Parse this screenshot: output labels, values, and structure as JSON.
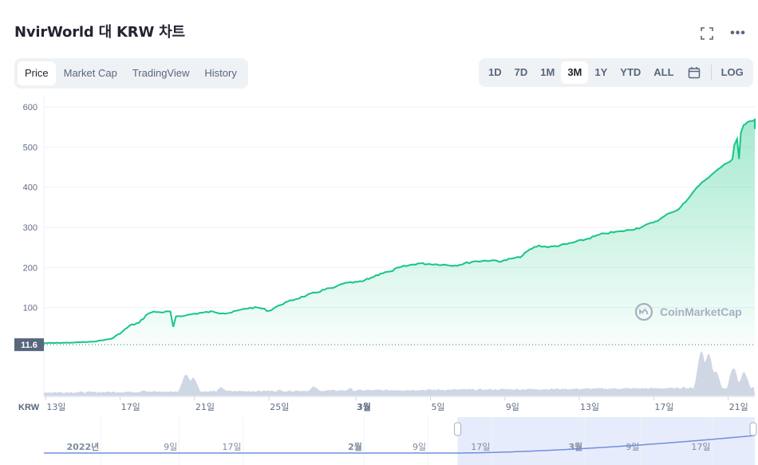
{
  "header": {
    "title": "NvirWorld 대 KRW 차트",
    "expand_icon": "expand-icon",
    "more_icon": "more-icon",
    "more_glyph": "•••"
  },
  "tabs": [
    {
      "label": "Price",
      "active": true
    },
    {
      "label": "Market Cap",
      "active": false
    },
    {
      "label": "TradingView",
      "active": false
    },
    {
      "label": "History",
      "active": false
    }
  ],
  "ranges": [
    {
      "label": "1D",
      "active": false
    },
    {
      "label": "7D",
      "active": false
    },
    {
      "label": "1M",
      "active": false
    },
    {
      "label": "3M",
      "active": true
    },
    {
      "label": "1Y",
      "active": false
    },
    {
      "label": "YTD",
      "active": false
    },
    {
      "label": "ALL",
      "active": false
    }
  ],
  "calendar_icon": "calendar-icon",
  "log_label": "LOG",
  "watermark": "CoinMarketCap",
  "colors": {
    "line": "#16c784",
    "volume": "#cfd6e4",
    "text": "#222531",
    "muted": "#58667e",
    "tab_bg": "#eff2f5",
    "navigator_fill": "#e6ecfb",
    "navigator_line": "#6f8fe0"
  },
  "chart_data": {
    "type": "area",
    "currency_label": "KRW",
    "current_value_label": "11.6",
    "y_ticks": [
      600,
      500,
      400,
      300,
      200,
      100
    ],
    "ylim": [
      0,
      600
    ],
    "x_ticks": [
      {
        "label": "13일",
        "day": 0,
        "bold": false
      },
      {
        "label": "17일",
        "day": 4,
        "bold": false
      },
      {
        "label": "21일",
        "day": 8,
        "bold": false
      },
      {
        "label": "25일",
        "day": 12,
        "bold": false
      },
      {
        "label": "3월",
        "day": 16.67,
        "bold": true
      },
      {
        "label": "5일",
        "day": 20.67,
        "bold": false
      },
      {
        "label": "9일",
        "day": 24.67,
        "bold": false
      },
      {
        "label": "13일",
        "day": 28.67,
        "bold": false
      },
      {
        "label": "17일",
        "day": 32.67,
        "bold": false
      },
      {
        "label": "21일",
        "day": 36.67,
        "bold": false
      }
    ],
    "x_range_days": [
      -0.1,
      38.1
    ],
    "series": [
      {
        "values": [
          [
            -0.1,
            11.6
          ],
          [
            0.5,
            12
          ],
          [
            1.5,
            13
          ],
          [
            2.5,
            15
          ],
          [
            3.5,
            22
          ],
          [
            4.0,
            35
          ],
          [
            4.5,
            55
          ],
          [
            5.0,
            62
          ],
          [
            5.5,
            85
          ],
          [
            5.8,
            90
          ],
          [
            6.2,
            88
          ],
          [
            6.7,
            90
          ],
          [
            6.85,
            52
          ],
          [
            7.0,
            78
          ],
          [
            7.5,
            80
          ],
          [
            8.0,
            85
          ],
          [
            8.5,
            88
          ],
          [
            9.0,
            90
          ],
          [
            9.5,
            86
          ],
          [
            10.0,
            88
          ],
          [
            10.5,
            95
          ],
          [
            11.0,
            100
          ],
          [
            11.5,
            99
          ],
          [
            12.0,
            92
          ],
          [
            12.5,
            105
          ],
          [
            13.0,
            115
          ],
          [
            14.0,
            130
          ],
          [
            15.0,
            145
          ],
          [
            15.5,
            150
          ],
          [
            16.0,
            160
          ],
          [
            16.5,
            162
          ],
          [
            17.0,
            165
          ],
          [
            17.5,
            175
          ],
          [
            18.0,
            185
          ],
          [
            18.5,
            190
          ],
          [
            19.0,
            200
          ],
          [
            20.0,
            210
          ],
          [
            21.0,
            208
          ],
          [
            22.0,
            205
          ],
          [
            23.0,
            215
          ],
          [
            24.0,
            218
          ],
          [
            24.5,
            215
          ],
          [
            25.0,
            222
          ],
          [
            25.5,
            225
          ],
          [
            26.0,
            245
          ],
          [
            26.5,
            255
          ],
          [
            27.0,
            250
          ],
          [
            28.0,
            258
          ],
          [
            29.0,
            270
          ],
          [
            30.0,
            285
          ],
          [
            31.0,
            290
          ],
          [
            32.0,
            300
          ],
          [
            33.0,
            320
          ],
          [
            33.5,
            335
          ],
          [
            34.0,
            345
          ],
          [
            34.5,
            370
          ],
          [
            35.0,
            400
          ],
          [
            35.5,
            420
          ],
          [
            36.0,
            440
          ],
          [
            36.3,
            450
          ],
          [
            36.6,
            460
          ],
          [
            36.9,
            470
          ],
          [
            37.0,
            505
          ],
          [
            37.15,
            520
          ],
          [
            37.25,
            470
          ],
          [
            37.35,
            535
          ],
          [
            37.5,
            555
          ],
          [
            37.7,
            562
          ],
          [
            38.0,
            565
          ],
          [
            38.3,
            568
          ],
          [
            38.5,
            550
          ],
          [
            38.7,
            545
          ],
          [
            39.0,
            550
          ]
        ]
      }
    ]
  },
  "navigator": {
    "labels": [
      {
        "label": "2022년",
        "bold": true,
        "pos": 0.08
      },
      {
        "label": "9일",
        "bold": false,
        "pos": 0.19
      },
      {
        "label": "17일",
        "bold": false,
        "pos": 0.28
      },
      {
        "label": "2월",
        "bold": true,
        "pos": 0.45
      },
      {
        "label": "9일",
        "bold": false,
        "pos": 0.54
      },
      {
        "label": "17일",
        "bold": false,
        "pos": 0.63
      },
      {
        "label": "3월",
        "bold": true,
        "pos": 0.76
      },
      {
        "label": "9일",
        "bold": false,
        "pos": 0.84
      },
      {
        "label": "17일",
        "bold": false,
        "pos": 0.94
      }
    ]
  }
}
